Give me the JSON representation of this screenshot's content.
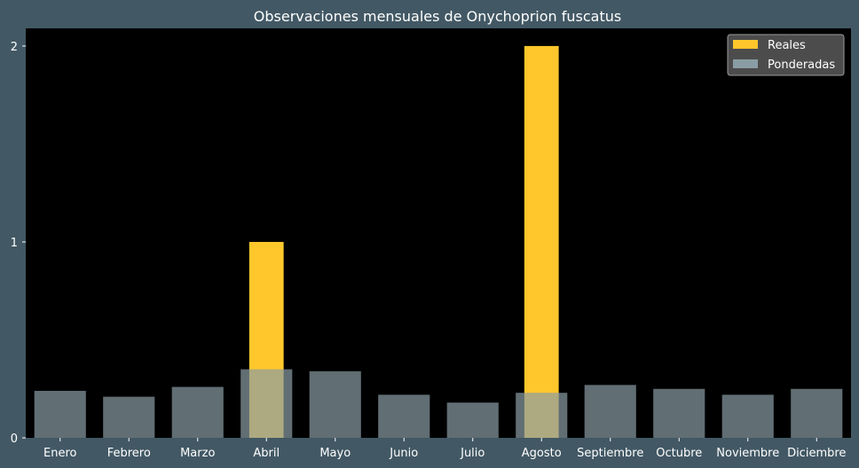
{
  "colors": {
    "figure_background": "#425864",
    "plot_background": "#000000",
    "reales": "#ffc72c",
    "ponderadas": "#8a9da4",
    "text": "#ffffff"
  },
  "chart_data": {
    "type": "bar",
    "title": "Observaciones mensuales de Onychoprion fuscatus",
    "xlabel": "",
    "ylabel": "",
    "categories": [
      "Enero",
      "Febrero",
      "Marzo",
      "Abril",
      "Mayo",
      "Junio",
      "Julio",
      "Agosto",
      "Septiembre",
      "Octubre",
      "Noviembre",
      "Diciembre"
    ],
    "series": [
      {
        "name": "Reales",
        "values": [
          0,
          0,
          0,
          1,
          0,
          0,
          0,
          2,
          0,
          0,
          0,
          0
        ]
      },
      {
        "name": "Ponderadas",
        "values": [
          0.24,
          0.21,
          0.26,
          0.35,
          0.34,
          0.22,
          0.18,
          0.23,
          0.27,
          0.25,
          0.22,
          0.25
        ]
      }
    ],
    "ylim": [
      0,
      2.09
    ],
    "yticks": [
      0,
      1,
      2
    ],
    "grid": false,
    "legend": "top-right"
  }
}
